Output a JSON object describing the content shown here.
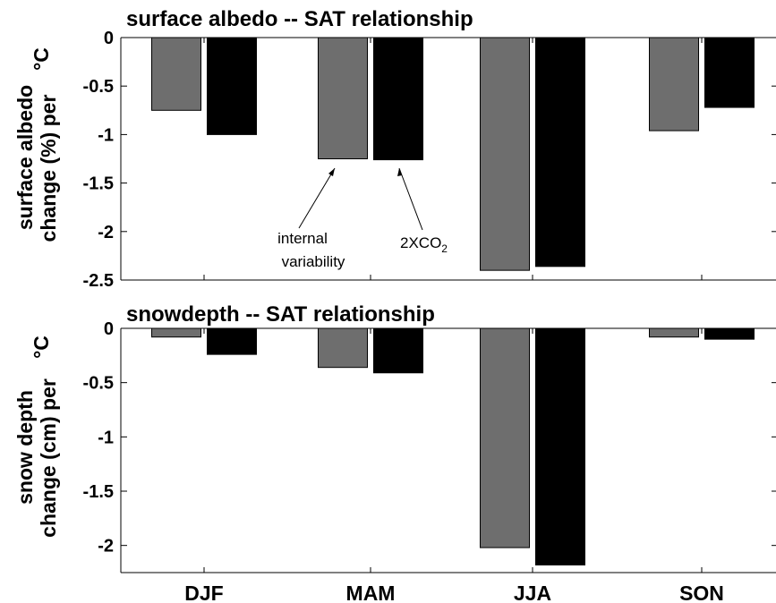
{
  "colors": {
    "internal": "#6e6e6e",
    "co2": "#000000"
  },
  "annotations": {
    "internal_line1": "internal",
    "internal_line2": "variability",
    "co2_main": "2XCO",
    "co2_sub": "2"
  },
  "chart_data": [
    {
      "type": "bar",
      "title": "surface albedo -- SAT relationship",
      "ylabel_line1": "surface albedo",
      "ylabel_line2": "change (%) per",
      "ylabel_unit": "°C",
      "categories": [
        "DJF",
        "MAM",
        "JJA",
        "SON"
      ],
      "ylim": [
        -2.5,
        0
      ],
      "yticks": [
        0,
        -0.5,
        -1,
        -1.5,
        -2,
        -2.5
      ],
      "ytick_labels": [
        "0",
        "-0.5",
        "-1",
        "-1.5",
        "-2",
        "-2.5"
      ],
      "grid": false,
      "series": [
        {
          "name": "internal variability",
          "values": [
            -0.75,
            -1.25,
            -2.4,
            -0.96
          ]
        },
        {
          "name": "2XCO2",
          "values": [
            -1.0,
            -1.26,
            -2.36,
            -0.72
          ]
        }
      ]
    },
    {
      "type": "bar",
      "title": "snowdepth -- SAT relationship",
      "ylabel_line1": "snow depth",
      "ylabel_line2": "change (cm) per",
      "ylabel_unit": "°C",
      "categories": [
        "DJF",
        "MAM",
        "JJA",
        "SON"
      ],
      "ylim": [
        -2.25,
        0
      ],
      "yticks": [
        0,
        -0.5,
        -1,
        -1.5,
        -2
      ],
      "ytick_labels": [
        "0",
        "-0.5",
        "-1",
        "-1.5",
        "-2"
      ],
      "grid": false,
      "series": [
        {
          "name": "internal variability",
          "values": [
            -0.08,
            -0.36,
            -2.02,
            -0.08
          ]
        },
        {
          "name": "2XCO2",
          "values": [
            -0.24,
            -0.41,
            -2.18,
            -0.1
          ]
        }
      ]
    }
  ]
}
